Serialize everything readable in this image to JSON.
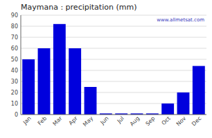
{
  "chart_data": {
    "type": "bar",
    "title": "Maymana : precipitation (mm)",
    "categories": [
      "Jan",
      "Feb",
      "Mar",
      "Apr",
      "May",
      "Jun",
      "Jul",
      "Aug",
      "Sep",
      "Oct",
      "Nov",
      "Dec"
    ],
    "values": [
      50,
      60,
      82,
      60,
      25,
      1,
      1,
      1,
      1,
      10,
      20,
      44
    ],
    "color": "#0000dd",
    "ylim": [
      0,
      90
    ],
    "yticks": [
      0,
      10,
      20,
      30,
      40,
      50,
      60,
      70,
      80,
      90
    ],
    "grid": true,
    "annotations": [
      "www.allmetsat.com"
    ]
  }
}
